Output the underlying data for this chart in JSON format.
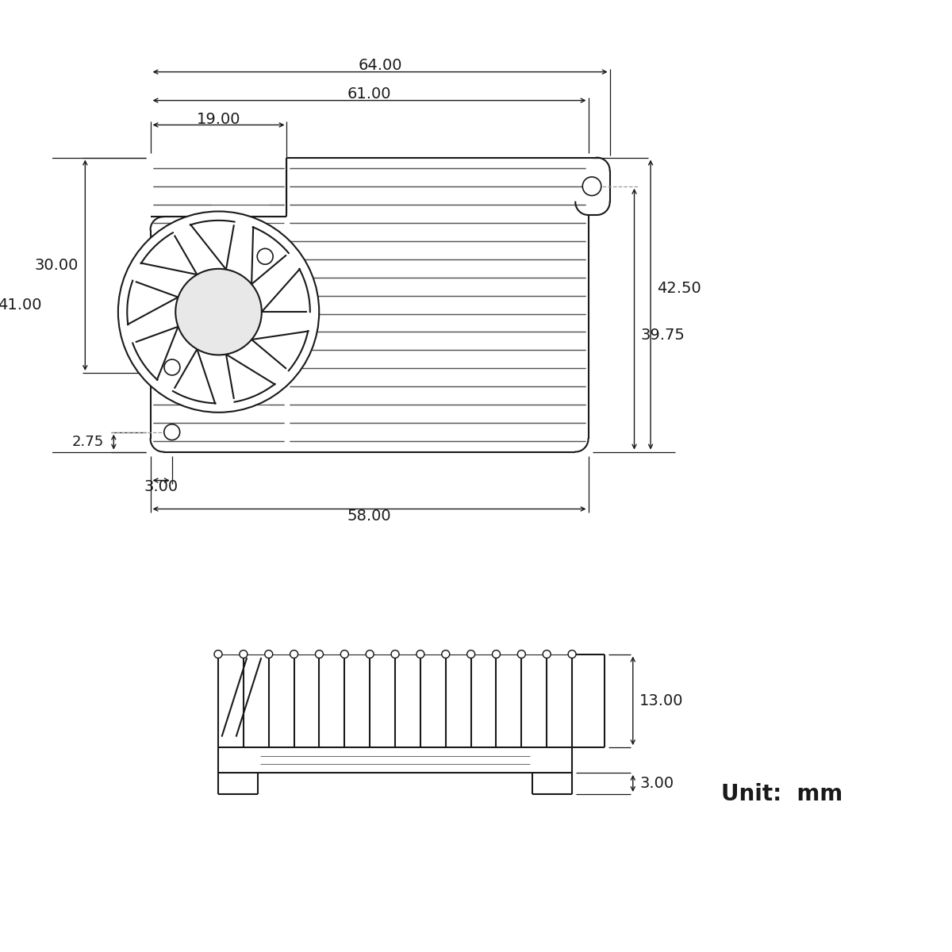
{
  "bg_color": "#ffffff",
  "line_color": "#1a1a1a",
  "dim_color": "#1a1a1a",
  "dashed_color": "#999999",
  "font_size_dim": 14,
  "font_size_unit": 20,
  "dimensions": {
    "top_width_64": "64.00",
    "top_width_61": "61.00",
    "top_width_19": "19.00",
    "left_height_41": "41.00",
    "left_height_30": "30.00",
    "left_height_2_75": "2.75",
    "bottom_width_58": "58.00",
    "bottom_offset_3": "3.00",
    "right_height_42_5": "42.50",
    "right_height_39_75": "39.75",
    "side_height_13": "13.00",
    "side_height_3": "3.00"
  },
  "unit_text": "Unit:  mm"
}
